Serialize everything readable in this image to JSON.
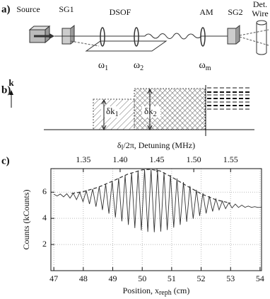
{
  "panel_a": {
    "label": "a)",
    "source": "Source",
    "sg1": "SG1",
    "dsof": "DSOF",
    "am": "AM",
    "sg2": "SG2",
    "det": "Det.",
    "wire": "Wire",
    "omega1": {
      "main": "ω",
      "sub": "1"
    },
    "omega2": {
      "main": "ω",
      "sub": "2"
    },
    "omegam": {
      "main": "ω",
      "sub": "m"
    }
  },
  "panel_b": {
    "label": "b)",
    "k": "k",
    "dk1": {
      "main": "δk",
      "sub": "1"
    },
    "dk2": {
      "main": "δk",
      "sub": "2"
    }
  },
  "chart_data": {
    "type": "line",
    "panel_label": "c)",
    "ylabel": "Counts (kCounts)",
    "xlabel": {
      "main": "Position,  x",
      "sub": "reph",
      "end": "  (cm)"
    },
    "x2label": {
      "main": "δ",
      "sub": "l",
      "end": "/2π, Detuning (MHz)"
    },
    "xlim": [
      46.9,
      54.05
    ],
    "xticks": [
      47,
      48,
      49,
      50,
      51,
      52,
      53,
      54
    ],
    "x2lim": [
      1.306,
      1.592
    ],
    "x2ticks": [
      {
        "value": 1.35,
        "label": "1.35"
      },
      {
        "value": 1.4,
        "label": "1.40"
      },
      {
        "value": 1.45,
        "label": "1.45"
      },
      {
        "value": 1.5,
        "label": "1.50"
      },
      {
        "value": 1.55,
        "label": "1.55"
      }
    ],
    "ylim": [
      0,
      7.8
    ],
    "yticks": [
      2,
      4,
      6
    ],
    "grid": true,
    "x": [
      47.0,
      47.11,
      47.22,
      47.33,
      47.44,
      47.55,
      47.66,
      47.77,
      47.88,
      47.99,
      48.1,
      48.21,
      48.32,
      48.43,
      48.54,
      48.65,
      48.76,
      48.87,
      48.98,
      49.09,
      49.2,
      49.31,
      49.42,
      49.53,
      49.64,
      49.75,
      49.86,
      49.97,
      50.08,
      50.19,
      50.3,
      50.41,
      50.52,
      50.63,
      50.74,
      50.85,
      50.96,
      51.07,
      51.18,
      51.29,
      51.4,
      51.51,
      51.62,
      51.73,
      51.84,
      51.95,
      52.06,
      52.17,
      52.28,
      52.39,
      52.5,
      52.61,
      52.72,
      52.83,
      52.94,
      53.05,
      53.16,
      53.27,
      53.38,
      53.49,
      53.6,
      53.71,
      53.82,
      53.93,
      54.04
    ],
    "series": [
      {
        "color": "#333333",
        "values": [
          5.85,
          5.71,
          5.86,
          5.64,
          5.88,
          5.55,
          5.92,
          5.43,
          5.99,
          5.28,
          6.1,
          5.1,
          6.24,
          4.89,
          6.41,
          4.64,
          6.61,
          4.36,
          6.83,
          4.07,
          7.07,
          3.77,
          7.29,
          3.5,
          7.49,
          3.26,
          7.64,
          3.08,
          7.73,
          2.97,
          7.74,
          2.94,
          7.67,
          2.99,
          7.52,
          3.11,
          7.31,
          3.29,
          7.05,
          3.5,
          6.77,
          3.74,
          6.47,
          3.97,
          6.18,
          4.19,
          5.92,
          4.38,
          5.69,
          4.53,
          5.49,
          4.65,
          5.32,
          4.74,
          5.19,
          4.8,
          5.09,
          4.83,
          5.01,
          4.84,
          4.94,
          4.84,
          4.89,
          4.83,
          4.86
        ]
      },
      {
        "color": "#333333",
        "dashed": true,
        "x": [
          47.6,
          48.0,
          48.5,
          49.0,
          49.5,
          50.0,
          50.3,
          50.6,
          51.0,
          51.5,
          52.0,
          52.5,
          53.0
        ],
        "values": [
          5.9,
          6.04,
          6.37,
          6.85,
          7.37,
          7.71,
          7.74,
          7.63,
          7.16,
          6.5,
          5.88,
          5.42,
          5.16
        ]
      }
    ]
  }
}
